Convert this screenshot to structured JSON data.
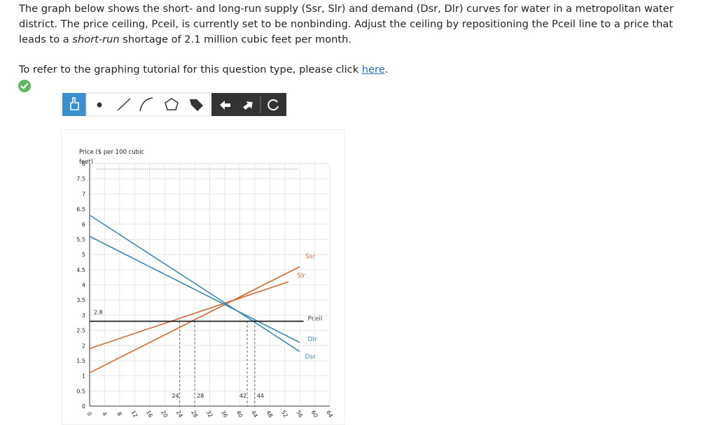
{
  "question": {
    "paragraph_start": "The graph below shows the short- and long-run supply (Ssr, Slr) and demand (Dsr, Dlr) curves for water in a metropolitan water district. The price ceiling, Pceil, is currently set to be nonbinding. Adjust the ceiling by repositioning the Pceil line to a price that leads to a ",
    "paragraph_italic": "short-run",
    "paragraph_end": " shortage of 2.1 million cubic feet per month.",
    "tutorial_text": "To refer to the graphing tutorial for this question type, please click ",
    "tutorial_link": "here",
    "tutorial_end": "."
  },
  "chart_data": {
    "type": "line",
    "y_label": "Price ($ per 100 cubic feet)",
    "xlim": [
      0,
      64
    ],
    "ylim": [
      0,
      8
    ],
    "xticks": [
      0,
      4,
      8,
      12,
      16,
      20,
      24,
      28,
      32,
      36,
      40,
      44,
      48,
      52,
      56,
      60,
      64
    ],
    "yticks": [
      0,
      0.5,
      1,
      1.5,
      2,
      2.5,
      3,
      3.5,
      4,
      4.5,
      5,
      5.5,
      6,
      6.5,
      7,
      7.5,
      8
    ],
    "grid": true,
    "series": [
      {
        "name": "Ssr",
        "color": "#d2692f",
        "x": [
          0,
          56
        ],
        "values": [
          1.1,
          4.6
        ]
      },
      {
        "name": "Slr",
        "color": "#d2692f",
        "x": [
          0,
          53
        ],
        "values": [
          1.9,
          4.1
        ]
      },
      {
        "name": "Dlr",
        "color": "#3a88ad",
        "x": [
          0,
          56
        ],
        "values": [
          5.6,
          2.1
        ]
      },
      {
        "name": "Dsr",
        "color": "#3a88ad",
        "x": [
          0,
          56
        ],
        "values": [
          6.3,
          1.8
        ]
      }
    ],
    "ceiling": {
      "name": "Pceil",
      "value": 2.8,
      "x": [
        0,
        57
      ],
      "color": "#111111"
    },
    "guides": [
      24,
      28,
      42,
      44
    ]
  }
}
